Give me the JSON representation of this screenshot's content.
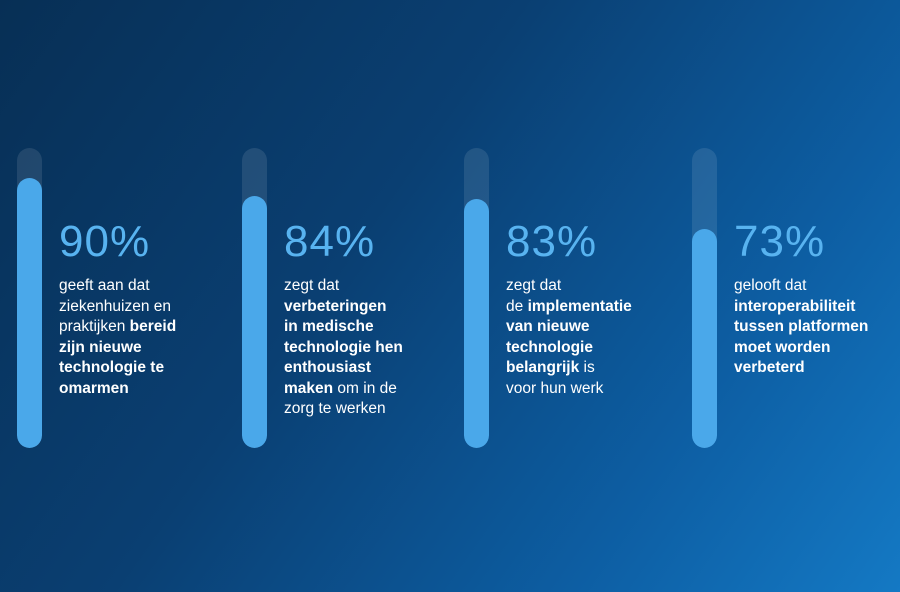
{
  "chart_data": {
    "type": "bar",
    "categories": [
      "90%",
      "84%",
      "83%",
      "73%"
    ],
    "values": [
      90,
      84,
      83,
      73
    ],
    "ylim": [
      0,
      100
    ],
    "colors": {
      "fill": "#4aa8ea",
      "track": "rgba(255,255,255,0.10)",
      "percent": "#58b3f0"
    },
    "stats": [
      {
        "percent": "90%",
        "value": 90,
        "lines": [
          [
            {
              "t": "geeft aan dat",
              "b": false
            }
          ],
          [
            {
              "t": "ziekenhuizen en",
              "b": false
            }
          ],
          [
            {
              "t": "praktijken ",
              "b": false
            },
            {
              "t": "bereid",
              "b": true
            }
          ],
          [
            {
              "t": "zijn nieuwe",
              "b": true
            }
          ],
          [
            {
              "t": "technologie te",
              "b": true
            }
          ],
          [
            {
              "t": "omarmen",
              "b": true
            }
          ]
        ]
      },
      {
        "percent": "84%",
        "value": 84,
        "lines": [
          [
            {
              "t": "zegt dat",
              "b": false
            }
          ],
          [
            {
              "t": "verbeteringen",
              "b": true
            }
          ],
          [
            {
              "t": "in medische",
              "b": true
            }
          ],
          [
            {
              "t": "technologie hen",
              "b": true
            }
          ],
          [
            {
              "t": "enthousiast",
              "b": true
            }
          ],
          [
            {
              "t": "maken",
              "b": true
            },
            {
              "t": " om in de",
              "b": false
            }
          ],
          [
            {
              "t": "zorg te werken",
              "b": false
            }
          ]
        ]
      },
      {
        "percent": "83%",
        "value": 83,
        "lines": [
          [
            {
              "t": "zegt dat",
              "b": false
            }
          ],
          [
            {
              "t": "de ",
              "b": false
            },
            {
              "t": "implementatie",
              "b": true
            }
          ],
          [
            {
              "t": "van nieuwe",
              "b": true
            }
          ],
          [
            {
              "t": "technologie",
              "b": true
            }
          ],
          [
            {
              "t": "belangrijk",
              "b": true
            },
            {
              "t": " is",
              "b": false
            }
          ],
          [
            {
              "t": "voor hun werk",
              "b": false
            }
          ]
        ]
      },
      {
        "percent": "73%",
        "value": 73,
        "lines": [
          [
            {
              "t": "gelooft dat",
              "b": false
            }
          ],
          [
            {
              "t": "interoperabiliteit",
              "b": true
            }
          ],
          [
            {
              "t": "tussen platformen",
              "b": true
            }
          ],
          [
            {
              "t": "moet worden",
              "b": true
            }
          ],
          [
            {
              "t": "verbeterd",
              "b": true
            }
          ]
        ]
      }
    ]
  }
}
